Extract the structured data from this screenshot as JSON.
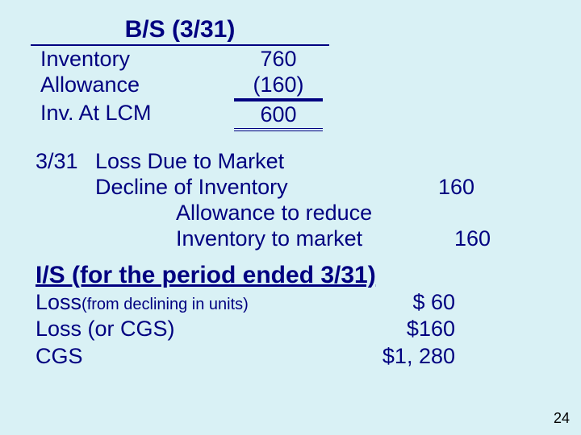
{
  "colors": {
    "background": "#d9f1f5",
    "text": "#000080",
    "rule": "#000080",
    "pagenum": "#000000"
  },
  "typography": {
    "family": "Arial",
    "body_pt": 27,
    "heading_pt": 30,
    "sub_pt": 20,
    "pagenum_pt": 18
  },
  "bs": {
    "title": "B/S (3/31)",
    "rows": [
      {
        "label": "Inventory",
        "value": "760"
      },
      {
        "label": "Allowance",
        "value": "(160)"
      },
      {
        "label": "Inv. At LCM",
        "value": "600"
      }
    ]
  },
  "je": {
    "date": "3/31",
    "debit_account_line1": "Loss Due to Market",
    "debit_account_line2": "Decline of Inventory",
    "debit_amount": "160",
    "credit_account_line1": "Allowance to reduce",
    "credit_account_line2": "Inventory to market",
    "credit_amount": "160"
  },
  "is": {
    "title": "I/S (for the period ended 3/31)",
    "rows": [
      {
        "label": "Loss",
        "sublabel": "(from declining in units)",
        "value": "$  60"
      },
      {
        "label": "Loss (or CGS)",
        "sublabel": "",
        "value": "$160"
      },
      {
        "label": "CGS",
        "sublabel": "",
        "value": "$1, 280"
      }
    ]
  },
  "page_number": "24"
}
